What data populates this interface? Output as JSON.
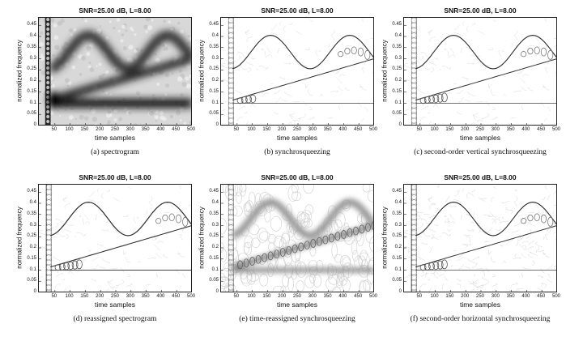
{
  "common": {
    "title": "SNR=25.00 dB, L=8.00",
    "xlabel": "time samples",
    "ylabel": "normalized frequency",
    "xticks": [
      "50",
      "100",
      "150",
      "200",
      "250",
      "300",
      "350",
      "400",
      "450",
      "500"
    ],
    "yticks": [
      "0",
      "0.05",
      "0.1",
      "0.15",
      "0.2",
      "0.25",
      "0.3",
      "0.35",
      "0.4",
      "0.45"
    ]
  },
  "chart_data": [
    {
      "type": "heatmap",
      "title": "SNR=25.00 dB, L=8.00",
      "caption": "(a) spectrogram",
      "xlabel": "time samples",
      "ylabel": "normalized frequency",
      "xlim": [
        0,
        500
      ],
      "ylim": [
        0,
        0.48
      ],
      "components": [
        {
          "name": "constant tone",
          "freq": 0.1
        },
        {
          "name": "linear chirp",
          "freq_start": 0.1,
          "freq_end": 0.3
        },
        {
          "name": "sinusoidal FM",
          "freq_center": 0.33,
          "peak": 0.405
        }
      ],
      "style": "spectrogram"
    },
    {
      "type": "heatmap",
      "title": "SNR=25.00 dB, L=8.00",
      "caption": "(b) synchrosqueezing",
      "xlabel": "time samples",
      "ylabel": "normalized frequency",
      "xlim": [
        0,
        500
      ],
      "ylim": [
        0,
        0.48
      ],
      "style": "synchrosqueezing"
    },
    {
      "type": "heatmap",
      "title": "SNR=25.00 dB, L=8.00",
      "caption": "(c) second-order vertical synchrosqueezing",
      "xlabel": "time samples",
      "ylabel": "normalized frequency",
      "xlim": [
        0,
        500
      ],
      "ylim": [
        0,
        0.48
      ],
      "style": "vertical"
    },
    {
      "type": "heatmap",
      "title": "SNR=25.00 dB, L=8.00",
      "caption": "(d) reassigned spectrogram",
      "xlabel": "time samples",
      "ylabel": "normalized frequency",
      "xlim": [
        0,
        500
      ],
      "ylim": [
        0,
        0.48
      ],
      "style": "reassigned"
    },
    {
      "type": "heatmap",
      "title": "SNR=25.00 dB, L=8.00",
      "caption": "(e) time-reassigned synchrosqueezing",
      "xlabel": "time samples",
      "ylabel": "normalized frequency",
      "xlim": [
        0,
        500
      ],
      "ylim": [
        0,
        0.48
      ],
      "style": "time-reassigned"
    },
    {
      "type": "heatmap",
      "title": "SNR=25.00 dB, L=8.00",
      "caption": "(f) second-order horizontal synchrosqueezing",
      "xlabel": "time samples",
      "ylabel": "normalized frequency",
      "xlim": [
        0,
        500
      ],
      "ylim": [
        0,
        0.48
      ],
      "style": "horizontal"
    }
  ]
}
